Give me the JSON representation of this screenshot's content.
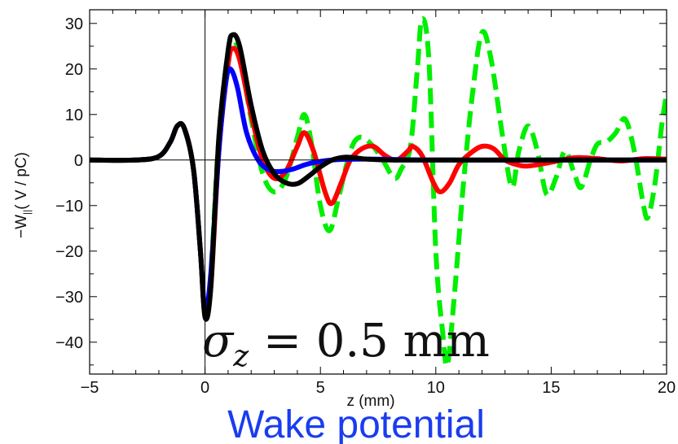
{
  "chart_data": {
    "type": "line",
    "title": "",
    "xlabel": "z (mm)",
    "ylabel_prefix": "−W",
    "ylabel_sub": "||",
    "ylabel_rest": "( V / pC)",
    "xlim": [
      -5,
      20
    ],
    "ylim": [
      -47,
      33
    ],
    "xticks": [
      -5,
      0,
      5,
      10,
      15,
      20
    ],
    "yticks": [
      30,
      20,
      10,
      0,
      -10,
      -20,
      -30,
      -40
    ],
    "xtick_labels": [
      "−5",
      "0",
      "5",
      "10",
      "15",
      "20"
    ],
    "ytick_labels": [
      "30",
      "20",
      "10",
      "0",
      "−10",
      "−20",
      "−30",
      "−40"
    ],
    "grid": false,
    "annotation": "σ_z = 0.5 mm",
    "annotation_parts": {
      "sigma": "σ",
      "sub": "z",
      "rest": " = 0.5 mm"
    },
    "caption": "Wake potential",
    "series": [
      {
        "color": "#00ee00",
        "dashed": true,
        "points": [
          [
            -5,
            0
          ],
          [
            -3,
            0
          ],
          [
            -2,
            0.8
          ],
          [
            -1.5,
            4
          ],
          [
            -1.2,
            7.5
          ],
          [
            -0.9,
            6.8
          ],
          [
            -0.5,
            -2
          ],
          [
            -0.2,
            -20
          ],
          [
            0,
            -34
          ],
          [
            0.25,
            -25
          ],
          [
            0.6,
            5
          ],
          [
            1.0,
            24
          ],
          [
            1.2,
            26.5
          ],
          [
            1.5,
            23
          ],
          [
            2.0,
            9
          ],
          [
            2.5,
            -3
          ],
          [
            3.0,
            -7
          ],
          [
            3.5,
            -4
          ],
          [
            4.0,
            5
          ],
          [
            4.3,
            10
          ],
          [
            4.6,
            4
          ],
          [
            5.0,
            -10
          ],
          [
            5.4,
            -15.5
          ],
          [
            5.8,
            -8
          ],
          [
            6.3,
            2
          ],
          [
            6.7,
            5
          ],
          [
            7.2,
            3.5
          ],
          [
            7.7,
            0
          ],
          [
            8.2,
            -4
          ],
          [
            8.5,
            -2
          ],
          [
            8.9,
            3
          ],
          [
            9.2,
            20
          ],
          [
            9.4,
            31
          ],
          [
            9.7,
            22
          ],
          [
            10.0,
            -20
          ],
          [
            10.3,
            -38
          ],
          [
            10.5,
            -45
          ],
          [
            10.8,
            -30
          ],
          [
            11.2,
            -5
          ],
          [
            11.6,
            15
          ],
          [
            12.0,
            28
          ],
          [
            12.4,
            22
          ],
          [
            12.9,
            5
          ],
          [
            13.3,
            -6
          ],
          [
            13.6,
            2
          ],
          [
            14.0,
            7.5
          ],
          [
            14.4,
            2
          ],
          [
            14.8,
            -7.5
          ],
          [
            15.2,
            -4
          ],
          [
            15.6,
            2
          ],
          [
            16.0,
            -3
          ],
          [
            16.3,
            -6
          ],
          [
            16.7,
            0
          ],
          [
            17.0,
            3.5
          ],
          [
            17.4,
            4
          ],
          [
            17.8,
            6
          ],
          [
            18.2,
            9
          ],
          [
            18.6,
            2
          ],
          [
            19.0,
            -10
          ],
          [
            19.2,
            -12.5
          ],
          [
            19.5,
            -5
          ],
          [
            19.8,
            8
          ],
          [
            20,
            14.5
          ]
        ]
      },
      {
        "color": "#ff0000",
        "dashed": false,
        "points": [
          [
            -5,
            0
          ],
          [
            -3,
            0
          ],
          [
            -2,
            0.8
          ],
          [
            -1.5,
            4
          ],
          [
            -1.2,
            7.5
          ],
          [
            -0.9,
            7
          ],
          [
            -0.5,
            -2
          ],
          [
            -0.2,
            -20
          ],
          [
            0,
            -34
          ],
          [
            0.25,
            -28
          ],
          [
            0.6,
            2
          ],
          [
            1.0,
            21
          ],
          [
            1.2,
            24.5
          ],
          [
            1.5,
            22
          ],
          [
            2.0,
            10
          ],
          [
            2.5,
            0
          ],
          [
            3.0,
            -4
          ],
          [
            3.5,
            -2.5
          ],
          [
            4.0,
            3
          ],
          [
            4.3,
            6
          ],
          [
            4.7,
            2
          ],
          [
            5.2,
            -7
          ],
          [
            5.5,
            -9.5
          ],
          [
            5.9,
            -5
          ],
          [
            6.3,
            0
          ],
          [
            6.8,
            2.5
          ],
          [
            7.3,
            3
          ],
          [
            7.8,
            1
          ],
          [
            8.3,
            0
          ],
          [
            8.8,
            2
          ],
          [
            9.0,
            3
          ],
          [
            9.4,
            1
          ],
          [
            9.9,
            -5
          ],
          [
            10.2,
            -7
          ],
          [
            10.6,
            -5
          ],
          [
            11.0,
            -1
          ],
          [
            11.5,
            1.5
          ],
          [
            12.0,
            3
          ],
          [
            12.5,
            2.5
          ],
          [
            13.0,
            0
          ],
          [
            13.5,
            -1
          ],
          [
            14.0,
            -1.3
          ],
          [
            15.0,
            -0.5
          ],
          [
            16.0,
            0.5
          ],
          [
            17.0,
            0.3
          ],
          [
            18.0,
            -0.2
          ],
          [
            19.0,
            0.3
          ],
          [
            20,
            0.2
          ]
        ]
      },
      {
        "color": "#0000ff",
        "dashed": false,
        "points": [
          [
            -5,
            0
          ],
          [
            -3,
            0
          ],
          [
            -2,
            0.8
          ],
          [
            -1.5,
            4
          ],
          [
            -1.2,
            7.5
          ],
          [
            -0.9,
            7
          ],
          [
            -0.5,
            -2
          ],
          [
            -0.2,
            -20
          ],
          [
            0,
            -33
          ],
          [
            0.25,
            -25
          ],
          [
            0.6,
            2
          ],
          [
            0.9,
            17
          ],
          [
            1.1,
            20
          ],
          [
            1.4,
            16
          ],
          [
            1.8,
            6
          ],
          [
            2.3,
            0
          ],
          [
            2.8,
            -2.2
          ],
          [
            3.3,
            -2.5
          ],
          [
            3.8,
            -2
          ],
          [
            4.5,
            -0.8
          ],
          [
            5.5,
            0
          ],
          [
            7,
            0.2
          ],
          [
            10,
            0
          ],
          [
            15,
            0
          ],
          [
            20,
            0
          ]
        ]
      },
      {
        "color": "#000000",
        "dashed": false,
        "points": [
          [
            -5,
            0
          ],
          [
            -3,
            0
          ],
          [
            -2,
            0.8
          ],
          [
            -1.5,
            4
          ],
          [
            -1.2,
            7.5
          ],
          [
            -0.9,
            7
          ],
          [
            -0.5,
            -2
          ],
          [
            -0.2,
            -20
          ],
          [
            0,
            -34.5
          ],
          [
            0.25,
            -28
          ],
          [
            0.6,
            5
          ],
          [
            1.0,
            24
          ],
          [
            1.2,
            27.5
          ],
          [
            1.5,
            25
          ],
          [
            2.0,
            12
          ],
          [
            2.5,
            2
          ],
          [
            3.0,
            -3
          ],
          [
            3.5,
            -5
          ],
          [
            4.0,
            -5.2
          ],
          [
            4.5,
            -3.5
          ],
          [
            5.0,
            -1.5
          ],
          [
            5.5,
            0
          ],
          [
            6.0,
            0.6
          ],
          [
            6.5,
            0.5
          ],
          [
            7.0,
            0.2
          ],
          [
            8.0,
            0
          ],
          [
            10,
            0
          ],
          [
            15,
            0
          ],
          [
            20,
            0
          ]
        ]
      }
    ]
  }
}
